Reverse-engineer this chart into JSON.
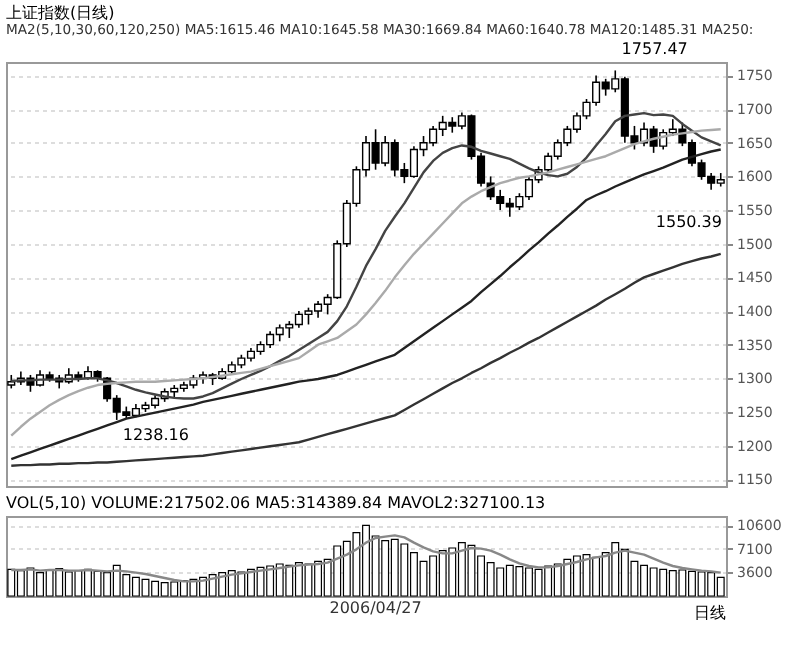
{
  "chart_data": [
    {
      "type": "candlestick",
      "title": "上证指数(日线)",
      "subtitle": "MA2(5,10,30,60,120,250)  MA5:1615.46  MA10:1645.58  MA30:1669.84  MA60:1640.78  MA120:1485.31  MA250:",
      "categories": [
        null,
        null,
        null,
        null,
        null,
        null,
        null,
        null,
        null,
        null,
        null,
        null,
        null,
        null,
        null,
        null,
        null,
        null,
        null,
        null,
        null,
        null,
        null,
        null,
        null,
        null,
        null,
        null,
        null,
        null,
        null,
        null,
        null,
        null,
        null,
        null,
        null,
        null,
        null,
        null,
        null,
        null,
        null,
        null,
        null,
        null,
        null,
        null,
        null,
        null,
        null,
        null,
        null,
        null,
        null,
        null,
        null,
        null,
        null,
        null,
        null,
        null,
        null,
        null,
        null,
        null,
        null,
        null,
        null,
        null,
        null,
        null,
        null,
        null,
        null
      ],
      "ohlc": [
        [
          1290,
          1305,
          1285,
          1295
        ],
        [
          1295,
          1310,
          1290,
          1300
        ],
        [
          1300,
          1305,
          1280,
          1290
        ],
        [
          1290,
          1312,
          1288,
          1305
        ],
        [
          1305,
          1310,
          1295,
          1300
        ],
        [
          1300,
          1305,
          1285,
          1295
        ],
        [
          1295,
          1315,
          1292,
          1305
        ],
        [
          1305,
          1310,
          1295,
          1300
        ],
        [
          1300,
          1318,
          1298,
          1310
        ],
        [
          1310,
          1312,
          1295,
          1300
        ],
        [
          1300,
          1302,
          1265,
          1270
        ],
        [
          1270,
          1275,
          1238.16,
          1250
        ],
        [
          1250,
          1258,
          1240,
          1245
        ],
        [
          1245,
          1262,
          1242,
          1255
        ],
        [
          1255,
          1265,
          1250,
          1260
        ],
        [
          1260,
          1275,
          1255,
          1270
        ],
        [
          1270,
          1285,
          1265,
          1280
        ],
        [
          1280,
          1290,
          1272,
          1285
        ],
        [
          1285,
          1295,
          1280,
          1290
        ],
        [
          1290,
          1305,
          1285,
          1300
        ],
        [
          1300,
          1310,
          1292,
          1305
        ],
        [
          1305,
          1308,
          1290,
          1300
        ],
        [
          1300,
          1315,
          1298,
          1310
        ],
        [
          1310,
          1325,
          1305,
          1320
        ],
        [
          1320,
          1335,
          1315,
          1330
        ],
        [
          1330,
          1345,
          1325,
          1340
        ],
        [
          1340,
          1355,
          1335,
          1350
        ],
        [
          1350,
          1370,
          1345,
          1365
        ],
        [
          1365,
          1380,
          1355,
          1375
        ],
        [
          1375,
          1385,
          1360,
          1380
        ],
        [
          1380,
          1400,
          1375,
          1395
        ],
        [
          1395,
          1405,
          1380,
          1400
        ],
        [
          1400,
          1415,
          1390,
          1410
        ],
        [
          1410,
          1425,
          1395,
          1420
        ],
        [
          1420,
          1505,
          1418,
          1500
        ],
        [
          1500,
          1565,
          1495,
          1560
        ],
        [
          1560,
          1615,
          1555,
          1610
        ],
        [
          1610,
          1660,
          1600,
          1650
        ],
        [
          1650,
          1670,
          1610,
          1620
        ],
        [
          1620,
          1660,
          1615,
          1650
        ],
        [
          1650,
          1655,
          1600,
          1610
        ],
        [
          1610,
          1620,
          1590,
          1600
        ],
        [
          1600,
          1645,
          1598,
          1640
        ],
        [
          1640,
          1660,
          1630,
          1650
        ],
        [
          1650,
          1675,
          1645,
          1670
        ],
        [
          1670,
          1690,
          1660,
          1680
        ],
        [
          1680,
          1688,
          1665,
          1675
        ],
        [
          1675,
          1695,
          1670,
          1690
        ],
        [
          1690,
          1692,
          1625,
          1630
        ],
        [
          1630,
          1635,
          1585,
          1590
        ],
        [
          1590,
          1600,
          1565,
          1570
        ],
        [
          1570,
          1580,
          1550,
          1560
        ],
        [
          1560,
          1568,
          1540,
          1555
        ],
        [
          1555,
          1575,
          1550,
          1570
        ],
        [
          1570,
          1600,
          1565,
          1595
        ],
        [
          1595,
          1615,
          1590,
          1610
        ],
        [
          1610,
          1635,
          1605,
          1630
        ],
        [
          1630,
          1655,
          1625,
          1650
        ],
        [
          1650,
          1675,
          1645,
          1670
        ],
        [
          1670,
          1695,
          1665,
          1690
        ],
        [
          1690,
          1715,
          1685,
          1710
        ],
        [
          1710,
          1750,
          1705,
          1740
        ],
        [
          1740,
          1745,
          1720,
          1730
        ],
        [
          1730,
          1757.47,
          1725,
          1745
        ],
        [
          1745,
          1748,
          1650,
          1660
        ],
        [
          1660,
          1675,
          1640,
          1650
        ],
        [
          1650,
          1680,
          1645,
          1670
        ],
        [
          1670,
          1675,
          1635,
          1645
        ],
        [
          1645,
          1670,
          1640,
          1665
        ],
        [
          1665,
          1685,
          1660,
          1670
        ],
        [
          1670,
          1680,
          1645,
          1650
        ],
        [
          1650,
          1655,
          1615,
          1620
        ],
        [
          1620,
          1625,
          1595,
          1600
        ],
        [
          1600,
          1605,
          1580,
          1590
        ],
        [
          1590,
          1605,
          1585,
          1595
        ]
      ],
      "series": [
        {
          "type": "line",
          "color": "#444444",
          "values": [
            1296,
            1297,
            1297,
            1298,
            1298,
            1298,
            1299,
            1299,
            1300,
            1300,
            1297,
            1293,
            1288,
            1283,
            1279,
            1276,
            1273,
            1271,
            1270,
            1270,
            1273,
            1278,
            1285,
            1292,
            1299,
            1305,
            1311,
            1318,
            1326,
            1333,
            1342,
            1351,
            1360,
            1369,
            1385,
            1407,
            1436,
            1467,
            1492,
            1519,
            1540,
            1560,
            1583,
            1606,
            1623,
            1635,
            1642,
            1646,
            1644,
            1638,
            1634,
            1630,
            1626,
            1619,
            1612,
            1606,
            1602,
            1600,
            1604,
            1614,
            1628,
            1646,
            1663,
            1682,
            1690,
            1692,
            1694,
            1691,
            1692,
            1690,
            1678,
            1668,
            1658,
            1652,
            1646
          ]
        },
        {
          "type": "line",
          "color": "#aaaaaa",
          "values": [
            1215,
            1228,
            1240,
            1250,
            1260,
            1268,
            1275,
            1281,
            1286,
            1290,
            1292,
            1293,
            1294,
            1295,
            1295,
            1295,
            1296,
            1297,
            1298,
            1299,
            1300,
            1302,
            1304,
            1306,
            1308,
            1310,
            1314,
            1318,
            1322,
            1326,
            1330,
            1340,
            1350,
            1355,
            1360,
            1370,
            1380,
            1395,
            1412,
            1430,
            1450,
            1468,
            1485,
            1500,
            1515,
            1530,
            1545,
            1560,
            1570,
            1578,
            1584,
            1590,
            1594,
            1598,
            1600,
            1603,
            1606,
            1610,
            1614,
            1618,
            1622,
            1626,
            1630,
            1636,
            1642,
            1648,
            1652,
            1656,
            1659,
            1662,
            1664,
            1666,
            1668,
            1669,
            1670
          ]
        },
        {
          "type": "line",
          "color": "#222222",
          "values": [
            1180,
            1185,
            1190,
            1195,
            1200,
            1205,
            1210,
            1215,
            1220,
            1225,
            1230,
            1235,
            1240,
            1243,
            1246,
            1249,
            1252,
            1255,
            1258,
            1261,
            1265,
            1268,
            1271,
            1274,
            1277,
            1280,
            1283,
            1286,
            1289,
            1292,
            1295,
            1297,
            1299,
            1302,
            1305,
            1310,
            1315,
            1320,
            1325,
            1330,
            1335,
            1345,
            1355,
            1365,
            1375,
            1385,
            1395,
            1405,
            1415,
            1428,
            1440,
            1452,
            1465,
            1477,
            1490,
            1502,
            1515,
            1527,
            1540,
            1552,
            1565,
            1572,
            1578,
            1585,
            1591,
            1597,
            1603,
            1608,
            1613,
            1619,
            1625,
            1629,
            1633,
            1637,
            1640
          ]
        },
        {
          "type": "line",
          "color": "#333333",
          "values": [
            1170,
            1171,
            1171,
            1172,
            1172,
            1173,
            1173,
            1174,
            1174,
            1175,
            1175,
            1176,
            1177,
            1178,
            1179,
            1180,
            1181,
            1182,
            1183,
            1184,
            1185,
            1187,
            1189,
            1191,
            1193,
            1195,
            1197,
            1199,
            1201,
            1203,
            1205,
            1209,
            1213,
            1217,
            1221,
            1225,
            1229,
            1233,
            1237,
            1241,
            1245,
            1253,
            1261,
            1269,
            1277,
            1285,
            1293,
            1300,
            1308,
            1315,
            1323,
            1330,
            1338,
            1345,
            1353,
            1360,
            1368,
            1376,
            1384,
            1392,
            1400,
            1408,
            1417,
            1425,
            1433,
            1442,
            1450,
            1455,
            1460,
            1465,
            1470,
            1474,
            1478,
            1481,
            1485
          ]
        }
      ],
      "ylim": [
        1140,
        1770
      ],
      "yticks": [
        1150,
        1200,
        1250,
        1300,
        1350,
        1400,
        1450,
        1500,
        1550,
        1600,
        1650,
        1700,
        1750
      ],
      "grid": "y",
      "tick_labels": "y",
      "annotations": [
        "1757.47",
        {
          "text": "1238.16",
          "y": 1238.16
        },
        "1550.39"
      ]
    },
    {
      "type": "bar",
      "title": "VOL(5,10)  VOLUME:217502.06  MA5:314389.84  MAVOL2:327100.13",
      "color": "#ffffff",
      "categories": [
        null,
        null,
        null,
        null,
        null,
        null,
        null,
        null,
        null,
        null,
        null,
        null,
        null,
        null,
        null,
        null,
        null,
        null,
        null,
        null,
        null,
        null,
        null,
        null,
        null,
        null,
        null,
        null,
        null,
        null,
        null,
        null,
        null,
        null,
        null,
        null,
        null,
        null,
        "2006/04/27",
        null,
        null,
        null,
        null,
        null,
        null,
        null,
        null,
        null,
        null,
        null,
        null,
        null,
        null,
        null,
        null,
        null,
        null,
        null,
        null,
        null,
        null,
        null,
        null,
        null,
        null,
        null,
        null,
        null,
        null,
        null,
        null,
        null,
        null,
        null,
        null
      ],
      "values": [
        4000,
        3800,
        4200,
        3500,
        3900,
        4100,
        3600,
        3800,
        4000,
        3700,
        3500,
        4600,
        3200,
        2800,
        2500,
        2200,
        2000,
        2100,
        2300,
        2500,
        2800,
        3200,
        3500,
        3800,
        3600,
        4000,
        4300,
        4500,
        4800,
        4600,
        5000,
        4800,
        5200,
        5500,
        7500,
        8200,
        9500,
        10600,
        9000,
        8300,
        8500,
        7800,
        6500,
        5200,
        6000,
        6800,
        7200,
        8000,
        7600,
        6000,
        5000,
        4200,
        4600,
        4400,
        4200,
        4000,
        4500,
        4800,
        5500,
        6000,
        6200,
        5800,
        6500,
        8000,
        7000,
        5200,
        4600,
        4200,
        4000,
        3800,
        3900,
        3700,
        3600,
        3500,
        2800
      ],
      "series": [
        {
          "type": "line",
          "color": "#888888",
          "values": [
            3900,
            3900,
            4000,
            3800,
            3900,
            3900,
            3800,
            3800,
            3900,
            3800,
            3700,
            3800,
            3700,
            3500,
            3300,
            3000,
            2700,
            2400,
            2200,
            2200,
            2300,
            2600,
            2900,
            3200,
            3400,
            3600,
            3800,
            4000,
            4200,
            4400,
            4600,
            4700,
            4800,
            5000,
            5600,
            6200,
            7000,
            8000,
            8700,
            8900,
            9100,
            8800,
            8000,
            7300,
            6700,
            6400,
            6400,
            6800,
            7200,
            7100,
            6800,
            6200,
            5500,
            4900,
            4500,
            4300,
            4300,
            4500,
            4800,
            5100,
            5500,
            5800,
            6000,
            6500,
            6800,
            6500,
            6200,
            5600,
            5000,
            4500,
            4200,
            4000,
            3800,
            3700,
            3500
          ]
        }
      ],
      "ylim": [
        0,
        12000
      ],
      "yticks": [
        3600,
        7100,
        10600
      ],
      "grid": "y",
      "annotations": [
        "日线"
      ]
    }
  ]
}
